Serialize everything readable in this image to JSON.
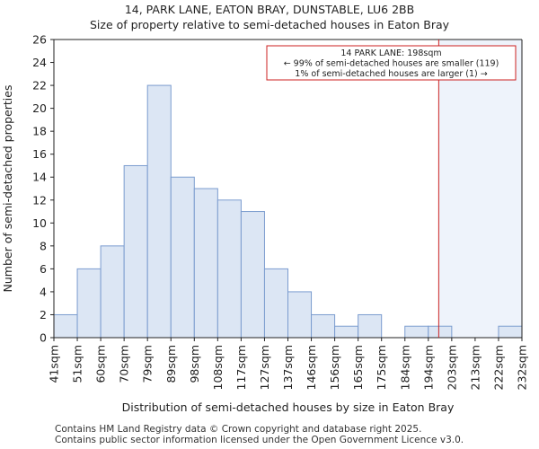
{
  "chart_data": {
    "type": "histogram",
    "title": "14, PARK LANE, EATON BRAY, DUNSTABLE, LU6 2BB",
    "subtitle": "Size of property relative to semi-detached houses in Eaton Bray",
    "xlabel": "Distribution of semi-detached houses by size in Eaton Bray",
    "ylabel": "Number of semi-detached properties",
    "categories": [
      "41sqm",
      "51sqm",
      "60sqm",
      "70sqm",
      "79sqm",
      "89sqm",
      "98sqm",
      "108sqm",
      "117sqm",
      "127sqm",
      "137sqm",
      "146sqm",
      "156sqm",
      "165sqm",
      "175sqm",
      "184sqm",
      "194sqm",
      "203sqm",
      "213sqm",
      "222sqm",
      "232sqm"
    ],
    "values": [
      2,
      6,
      8,
      15,
      22,
      14,
      13,
      12,
      11,
      6,
      4,
      2,
      1,
      2,
      0,
      1,
      1,
      0,
      0,
      1
    ],
    "ylim": [
      0,
      26
    ],
    "yticks": [
      0,
      2,
      4,
      6,
      8,
      10,
      12,
      14,
      16,
      18,
      20,
      22,
      24,
      26
    ],
    "bar_color": "#dce6f4",
    "bar_edge_color": "#7b9ccf",
    "highlight_color": "#eef3fb",
    "marker": {
      "value": 198,
      "color": "#cc2222",
      "region_start_bin": 16,
      "annotation_lines": [
        "14 PARK LANE: 198sqm",
        "← 99% of semi-detached houses are smaller (119)",
        "1% of semi-detached houses are larger (1) →"
      ]
    }
  },
  "footer": {
    "line1": "Contains HM Land Registry data © Crown copyright and database right 2025.",
    "line2": "Contains public sector information licensed under the Open Government Licence v3.0."
  }
}
